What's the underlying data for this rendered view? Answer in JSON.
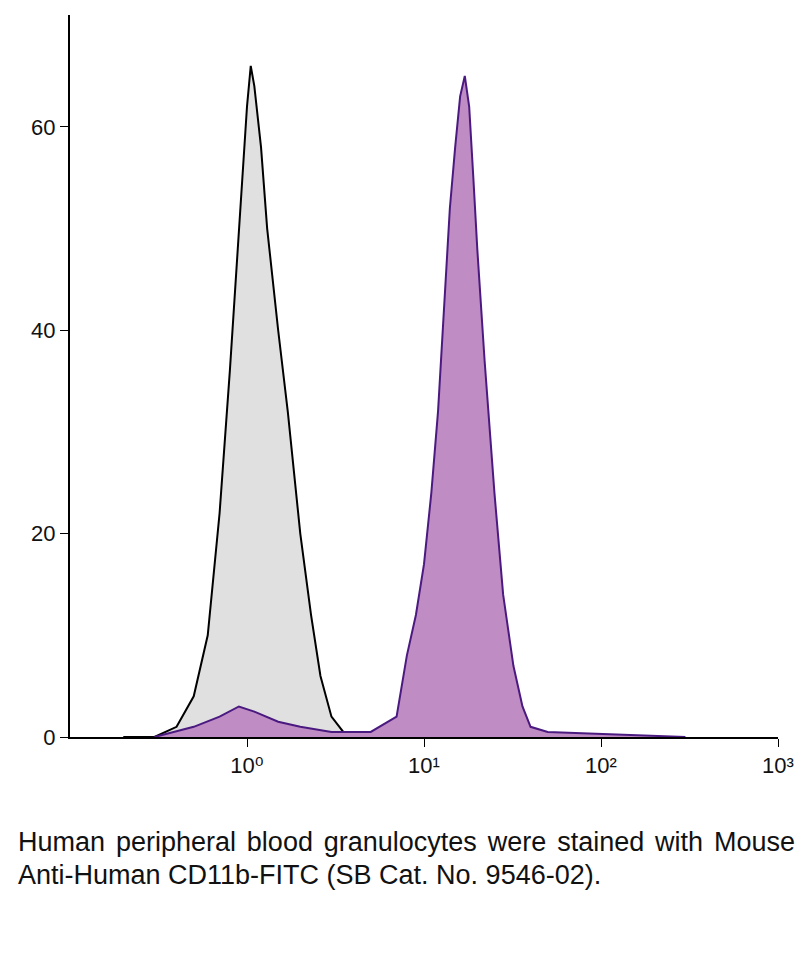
{
  "chart_data": {
    "type": "area",
    "log": "x",
    "grid": false,
    "caption": "Human peripheral blood granulocytes were stained with Mouse Anti-Human CD11b-FITC (SB Cat. No. 9546-02).",
    "xlim": [
      0.1,
      1000
    ],
    "xticks": [
      {
        "value": 1,
        "label": "10⁰"
      },
      {
        "value": 10,
        "label": "10¹"
      },
      {
        "value": 100,
        "label": "10²"
      },
      {
        "value": 1000,
        "label": "10³"
      }
    ],
    "ylim": [
      0,
      71
    ],
    "yticks": [
      0,
      20,
      40,
      60
    ],
    "series": [
      {
        "color": "#e0e0e0",
        "line_color": "#000000",
        "x": [
          0.2,
          0.3,
          0.4,
          0.5,
          0.6,
          0.7,
          0.8,
          0.9,
          1.0,
          1.05,
          1.1,
          1.2,
          1.3,
          1.5,
          1.7,
          2.0,
          2.3,
          2.6,
          3.0,
          3.5,
          4.0
        ],
        "values": [
          0,
          0,
          1,
          4,
          10,
          22,
          36,
          50,
          62,
          66,
          64,
          58,
          50,
          40,
          32,
          20,
          12,
          6,
          2,
          0.5,
          0
        ]
      },
      {
        "color": "#bf8cc4",
        "line_color": "#4b1a80",
        "x": [
          0.3,
          0.5,
          0.7,
          0.9,
          1.1,
          1.5,
          2,
          3,
          5,
          7,
          8,
          9,
          10,
          11,
          12,
          13,
          14,
          15,
          16,
          17,
          18,
          19,
          20,
          22,
          25,
          28,
          32,
          36,
          40,
          50,
          100,
          200,
          300
        ],
        "values": [
          0,
          1,
          2,
          3,
          2.5,
          1.5,
          1,
          0.5,
          0.5,
          2,
          8,
          12,
          17,
          24,
          32,
          42,
          52,
          58,
          63,
          65,
          62,
          55,
          48,
          37,
          24,
          14,
          7,
          3,
          1,
          0.5,
          0.3,
          0.1,
          0
        ]
      }
    ]
  }
}
